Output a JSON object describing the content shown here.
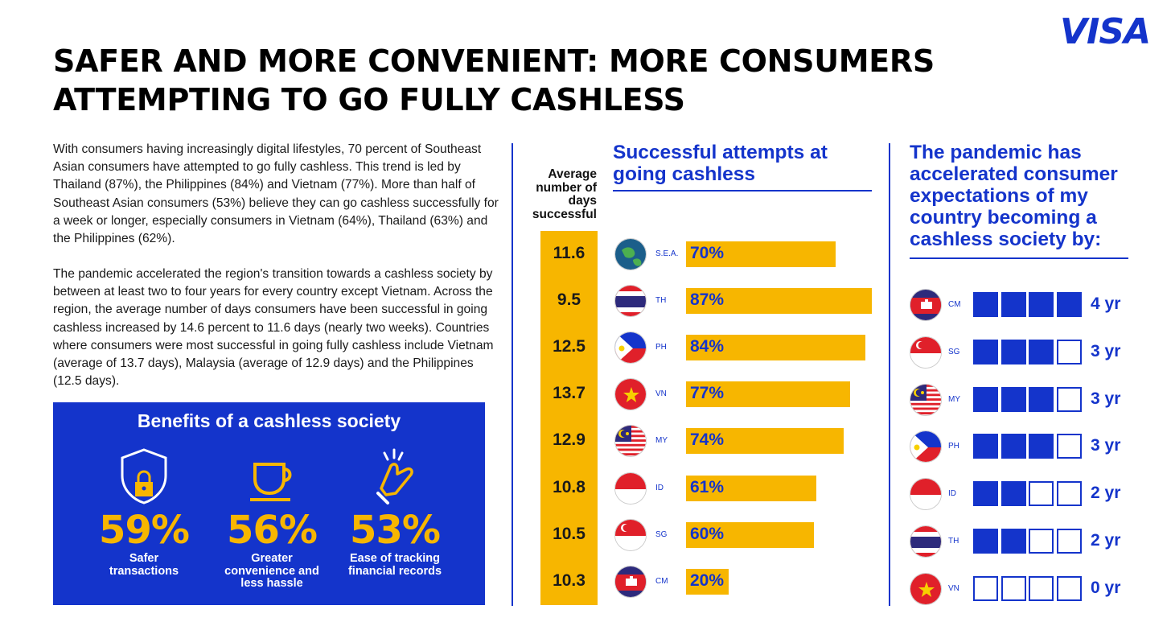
{
  "brand": "VISA",
  "title": "SAFER AND MORE CONVENIENT: MORE CONSUMERS ATTEMPTING TO GO FULLY CASHLESS",
  "paragraphs": [
    "With consumers having increasingly digital lifestyles, 70 percent of Southeast Asian consumers have attempted to go fully cashless. This trend is led by Thailand (87%), the Philippines (84%) and Vietnam (77%). More than half of Southeast Asian consumers (53%) believe they can go cashless successfully for a week or longer, especially consumers in Vietnam (64%), Thailand (63%) and the Philippines (62%).",
    "The pandemic accelerated the region's transition towards a cashless society by between at least two to four years for every country except Vietnam. Across the region, the average number of days consumers have been successful in going cashless increased by 14.6 percent to 11.6 days (nearly two weeks). Countries where consumers were most successful in going fully cashless include Vietnam (average of 13.7 days), Malaysia (average of 12.9 days) and the Philippines (12.5 days)."
  ],
  "benefits": {
    "title": "Benefits of a cashless society",
    "items": [
      {
        "icon": "shield-lock-icon",
        "value": "59%",
        "label": "Safer transactions"
      },
      {
        "icon": "coffee-cup-icon",
        "value": "56%",
        "label": "Greater convenience and less hassle"
      },
      {
        "icon": "tap-hand-icon",
        "value": "53%",
        "label": "Ease of tracking financial records"
      }
    ]
  },
  "chart_data": [
    {
      "type": "bar",
      "title": "Successful attempts at going cashless",
      "side_header": "Average number of days successful",
      "categories": [
        "S.E.A.",
        "TH",
        "PH",
        "VN",
        "MY",
        "ID",
        "SG",
        "CM"
      ],
      "values": [
        70,
        87,
        84,
        77,
        74,
        61,
        60,
        20
      ],
      "value_labels": [
        "70%",
        "87%",
        "84%",
        "77%",
        "74%",
        "61%",
        "60%",
        "20%"
      ],
      "avg_days": [
        "11.6",
        "9.5",
        "12.5",
        "13.7",
        "12.9",
        "10.8",
        "10.5",
        "10.3"
      ],
      "xlim": [
        0,
        87
      ]
    },
    {
      "type": "bar",
      "title": "The pandemic has accelerated consumer expectations of my country becoming a cashless society by:",
      "categories": [
        "CM",
        "SG",
        "MY",
        "PH",
        "ID",
        "TH",
        "VN"
      ],
      "values": [
        4,
        3,
        3,
        3,
        2,
        2,
        0
      ],
      "value_labels": [
        "4 yr",
        "3 yr",
        "3 yr",
        "3 yr",
        "2 yr",
        "2 yr",
        "0 yr"
      ],
      "max_boxes": 4
    }
  ],
  "colors": {
    "visa_blue": "#1434cb",
    "gold": "#f7b600"
  }
}
